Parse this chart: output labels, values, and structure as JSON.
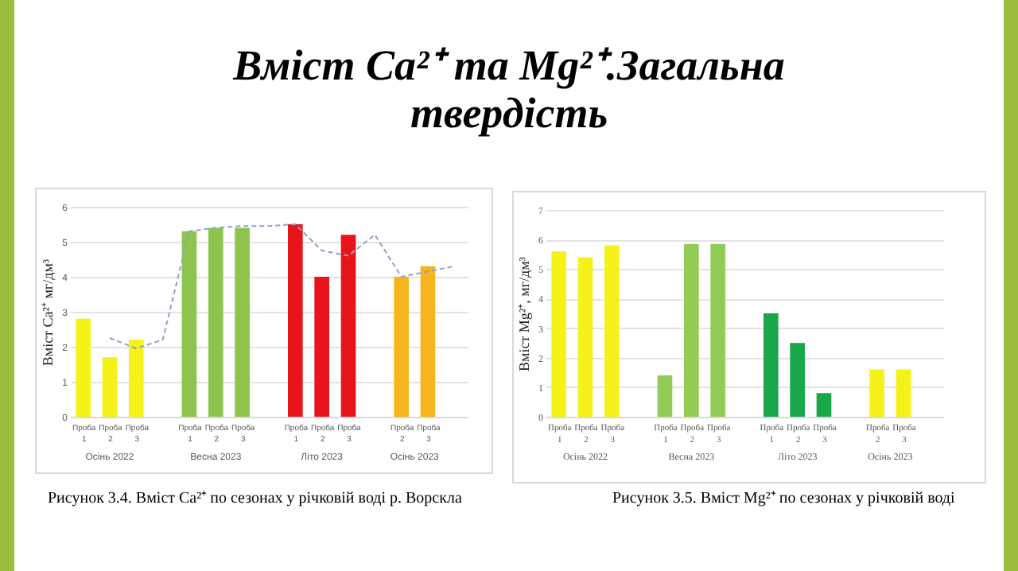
{
  "chart_data": [
    {
      "type": "bar",
      "title": "Вміст Ca²⁺ та Mg²⁺.Загальна твердість",
      "ylabel": "Вміст Ca²⁺ мг/дм³",
      "categories": [
        "Проба 1",
        "Проба 2",
        "Проба 3",
        null,
        "Проба 1",
        "Проба 2",
        "Проба 3",
        null,
        "Проба 1",
        "Проба 2",
        "Проба 3",
        null,
        "Проба 2",
        "Проба 3",
        null
      ],
      "series": [
        {
          "colors": [
            "#f5f219",
            "#f5f219",
            "#f5f219",
            null,
            "#8dc44e",
            "#8dc44e",
            "#8dc44e",
            null,
            "#e8141b",
            "#e8141b",
            "#e8141b",
            null,
            "#f6b51c",
            "#f6b51c",
            null
          ],
          "values": [
            2.8,
            1.7,
            2.2,
            null,
            5.3,
            5.4,
            5.4,
            null,
            5.5,
            4.0,
            5.2,
            null,
            4.0,
            4.3,
            null
          ]
        },
        {
          "type": "line",
          "color": "#8fa2c2",
          "line_style": "dashed",
          "marker": "none",
          "values": [
            null,
            2.25,
            1.95,
            2.2,
            5.3,
            5.4,
            5.45,
            5.45,
            5.5,
            4.75,
            4.6,
            5.2,
            4.0,
            4.15,
            4.3
          ]
        }
      ],
      "ylim": [
        0,
        6
      ],
      "yticks": [
        0,
        1,
        2,
        3,
        4,
        5,
        6
      ],
      "grid": "y",
      "annotations": [
        "Осінь 2022",
        "Весна 2023",
        "Літо 2023",
        "Осінь 2023",
        "Рисунок 3.4. Вміст Ca²⁺ по сезонах у річковій воді р. Ворскла"
      ]
    },
    {
      "type": "bar",
      "ylabel": "Вміст Mg²⁺, мг/дм³",
      "categories": [
        "Проба 1",
        "Проба 2",
        "Проба 3",
        null,
        "Проба 1",
        "Проба 2",
        "Проба 3",
        null,
        "Проба 1",
        "Проба 2",
        "Проба 3",
        null,
        "Проба 2",
        "Проба 3",
        null
      ],
      "series": [
        {
          "colors": [
            "#f5f219",
            "#f5f219",
            "#f5f219",
            null,
            "#92cc56",
            "#92cc56",
            "#92cc56",
            null,
            "#1aa64a",
            "#1aa64a",
            "#1aa64a",
            null,
            "#f5f219",
            "#f5f219",
            null
          ],
          "values": [
            5.6,
            5.4,
            5.8,
            null,
            1.4,
            5.85,
            5.85,
            null,
            3.5,
            2.5,
            0.8,
            null,
            1.6,
            1.6,
            null
          ]
        }
      ],
      "ylim": [
        0,
        7
      ],
      "yticks": [
        0,
        1,
        2,
        3,
        4,
        5,
        6,
        7
      ],
      "grid": "y",
      "annotations": [
        "Осінь 2022",
        "Весна 2023",
        "Літо 2023",
        "Осінь 2023",
        "Рисунок 3.5. Вміст Mg²⁺ по сезонах у річковій воді"
      ]
    }
  ]
}
